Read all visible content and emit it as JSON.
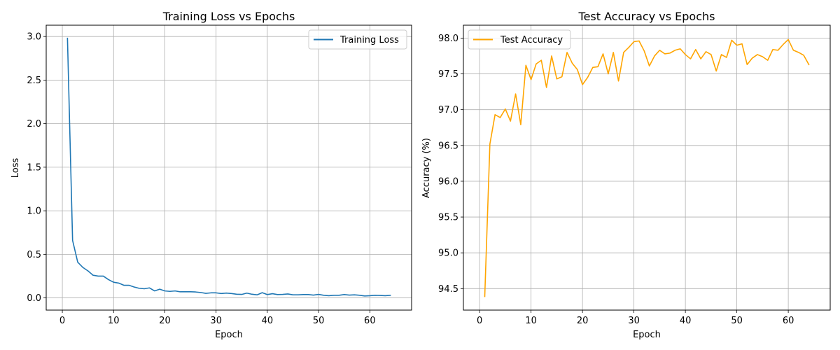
{
  "chart_data": [
    {
      "type": "line",
      "title": "Training Loss vs Epochs",
      "xlabel": "Epoch",
      "ylabel": "Loss",
      "xlim": [
        -3.15,
        68.15
      ],
      "ylim": [
        -0.14,
        3.13
      ],
      "xticks": [
        0,
        10,
        20,
        30,
        40,
        50,
        60
      ],
      "yticks": [
        0.0,
        0.5,
        1.0,
        1.5,
        2.0,
        2.5,
        3.0
      ],
      "ytick_labels": [
        "0.0",
        "0.5",
        "1.0",
        "1.5",
        "2.0",
        "2.5",
        "3.0"
      ],
      "grid": true,
      "legend_position": "upper right",
      "series": [
        {
          "name": "Training Loss",
          "color": "#1f77b4",
          "x": [
            1,
            2,
            3,
            4,
            5,
            6,
            7,
            8,
            9,
            10,
            11,
            12,
            13,
            14,
            15,
            16,
            17,
            18,
            19,
            20,
            21,
            22,
            23,
            24,
            25,
            26,
            27,
            28,
            29,
            30,
            31,
            32,
            33,
            34,
            35,
            36,
            37,
            38,
            39,
            40,
            41,
            42,
            43,
            44,
            45,
            46,
            47,
            48,
            49,
            50,
            51,
            52,
            53,
            54,
            55,
            56,
            57,
            58,
            59,
            60,
            61,
            62,
            63,
            64
          ],
          "values": [
            2.98,
            0.66,
            0.41,
            0.35,
            0.31,
            0.26,
            0.25,
            0.25,
            0.21,
            0.18,
            0.17,
            0.145,
            0.145,
            0.125,
            0.11,
            0.105,
            0.115,
            0.08,
            0.1,
            0.08,
            0.075,
            0.08,
            0.07,
            0.07,
            0.07,
            0.068,
            0.062,
            0.052,
            0.058,
            0.058,
            0.05,
            0.055,
            0.05,
            0.042,
            0.04,
            0.055,
            0.042,
            0.035,
            0.06,
            0.038,
            0.048,
            0.038,
            0.04,
            0.045,
            0.035,
            0.035,
            0.038,
            0.038,
            0.032,
            0.04,
            0.03,
            0.025,
            0.03,
            0.03,
            0.038,
            0.032,
            0.035,
            0.03,
            0.022,
            0.025,
            0.03,
            0.028,
            0.025,
            0.03
          ]
        }
      ]
    },
    {
      "type": "line",
      "title": "Test Accuracy vs Epochs",
      "xlabel": "Epoch",
      "ylabel": "Accuracy (%)",
      "xlim": [
        -3.15,
        68.15
      ],
      "ylim": [
        94.2,
        98.18
      ],
      "xticks": [
        0,
        10,
        20,
        30,
        40,
        50,
        60
      ],
      "yticks": [
        94.5,
        95.0,
        95.5,
        96.0,
        96.5,
        97.0,
        97.5,
        98.0
      ],
      "ytick_labels": [
        "94.5",
        "95.0",
        "95.5",
        "96.0",
        "96.5",
        "97.0",
        "97.5",
        "98.0"
      ],
      "grid": true,
      "legend_position": "upper left",
      "series": [
        {
          "name": "Test Accuracy",
          "color": "#ffa500",
          "x": [
            1,
            2,
            3,
            4,
            5,
            6,
            7,
            8,
            9,
            10,
            11,
            12,
            13,
            14,
            15,
            16,
            17,
            18,
            19,
            20,
            21,
            22,
            23,
            24,
            25,
            26,
            27,
            28,
            29,
            30,
            31,
            32,
            33,
            34,
            35,
            36,
            37,
            38,
            39,
            40,
            41,
            42,
            43,
            44,
            45,
            46,
            47,
            48,
            49,
            50,
            51,
            52,
            53,
            54,
            55,
            56,
            57,
            58,
            59,
            60,
            61,
            62,
            63,
            64
          ],
          "values": [
            94.39,
            96.52,
            96.93,
            96.89,
            97.01,
            96.84,
            97.22,
            96.79,
            97.62,
            97.42,
            97.64,
            97.69,
            97.31,
            97.75,
            97.43,
            97.46,
            97.8,
            97.65,
            97.56,
            97.35,
            97.45,
            97.59,
            97.6,
            97.78,
            97.5,
            97.8,
            97.4,
            97.8,
            97.87,
            97.95,
            97.96,
            97.82,
            97.61,
            97.75,
            97.83,
            97.78,
            97.79,
            97.83,
            97.85,
            97.77,
            97.71,
            97.84,
            97.71,
            97.81,
            97.77,
            97.54,
            97.77,
            97.73,
            97.97,
            97.9,
            97.92,
            97.63,
            97.72,
            97.77,
            97.74,
            97.69,
            97.84,
            97.83,
            97.91,
            97.98,
            97.83,
            97.8,
            97.76,
            97.63
          ]
        }
      ]
    }
  ]
}
